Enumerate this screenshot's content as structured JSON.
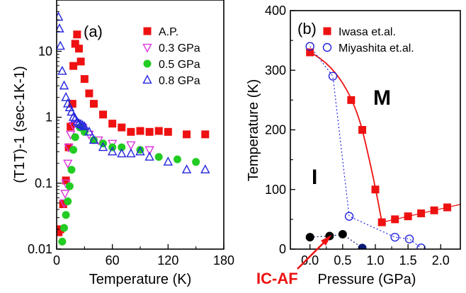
{
  "chart_data": [
    {
      "panel": "(a)",
      "type": "scatter",
      "xlabel": "Temperature (K)",
      "ylabel": "(T1T)-1 (sec-1K-1)",
      "xlim": [
        0,
        180
      ],
      "ylim": [
        0.01,
        60
      ],
      "yscale": "log",
      "xticks": [
        "0",
        "60",
        "120",
        "180"
      ],
      "yticks": [
        "0.01",
        "0.1",
        "1",
        "10"
      ],
      "legend_position": "top-right",
      "series": [
        {
          "name": "A.P.",
          "marker": "square",
          "color": "#ee1111",
          "filled": true,
          "points": [
            [
              2,
              0.018
            ],
            [
              4,
              0.02
            ],
            [
              7,
              0.048
            ],
            [
              10,
              0.11
            ],
            [
              13,
              0.35
            ],
            [
              15,
              0.72
            ],
            [
              17,
              1.6
            ],
            [
              18,
              6
            ],
            [
              20,
              13
            ],
            [
              22,
              18
            ],
            [
              24,
              11
            ],
            [
              26,
              7
            ],
            [
              30,
              3.8
            ],
            [
              35,
              2.3
            ],
            [
              40,
              1.6
            ],
            [
              50,
              1.1
            ],
            [
              60,
              0.8
            ],
            [
              70,
              0.7
            ],
            [
              80,
              0.6
            ],
            [
              90,
              0.62
            ],
            [
              100,
              0.6
            ],
            [
              110,
              0.62
            ],
            [
              120,
              0.6
            ],
            [
              140,
              0.55
            ],
            [
              160,
              0.55
            ]
          ]
        },
        {
          "name": "0.3 GPa",
          "marker": "triangle-down",
          "color": "#dd33dd",
          "filled": false,
          "points": [
            [
              8,
              0.05
            ],
            [
              9,
              0.07
            ],
            [
              10,
              0.1
            ],
            [
              12,
              0.2
            ],
            [
              13,
              0.35
            ],
            [
              15,
              0.55
            ],
            [
              18,
              0.75
            ],
            [
              22,
              0.8
            ],
            [
              28,
              0.7
            ],
            [
              35,
              0.55
            ],
            [
              45,
              0.45
            ],
            [
              60,
              0.4
            ],
            [
              80,
              0.38
            ],
            [
              100,
              0.32
            ]
          ]
        },
        {
          "name": "0.5 GPa",
          "marker": "circle",
          "color": "#22cc22",
          "filled": true,
          "points": [
            [
              3,
              0.009
            ],
            [
              6,
              0.013
            ],
            [
              8,
              0.021
            ],
            [
              10,
              0.033
            ],
            [
              12,
              0.053
            ],
            [
              14,
              0.09
            ],
            [
              16,
              0.16
            ],
            [
              18,
              0.32
            ],
            [
              20,
              0.5
            ],
            [
              25,
              0.7
            ],
            [
              30,
              0.6
            ],
            [
              40,
              0.45
            ],
            [
              50,
              0.4
            ],
            [
              60,
              0.35
            ],
            [
              70,
              0.35
            ],
            [
              90,
              0.32
            ],
            [
              110,
              0.25
            ],
            [
              130,
              0.23
            ],
            [
              150,
              0.21
            ]
          ]
        },
        {
          "name": "0.8 GPa",
          "marker": "triangle-up",
          "color": "#2222dd",
          "filled": false,
          "points": [
            [
              2,
              33
            ],
            [
              3,
              22
            ],
            [
              4,
              12
            ],
            [
              6,
              5
            ],
            [
              8,
              3
            ],
            [
              10,
              2
            ],
            [
              12,
              1.6
            ],
            [
              14,
              1.4
            ],
            [
              16,
              1.2
            ],
            [
              18,
              1.0
            ],
            [
              20,
              0.95
            ],
            [
              22,
              0.85
            ],
            [
              24,
              0.8
            ],
            [
              26,
              0.78
            ],
            [
              28,
              0.75
            ],
            [
              30,
              0.72
            ],
            [
              35,
              0.6
            ],
            [
              40,
              0.45
            ],
            [
              50,
              0.35
            ],
            [
              60,
              0.3
            ],
            [
              70,
              0.28
            ],
            [
              80,
              0.28
            ],
            [
              90,
              0.3
            ],
            [
              100,
              0.25
            ],
            [
              120,
              0.21
            ],
            [
              140,
              0.16
            ],
            [
              160,
              0.16
            ]
          ]
        }
      ]
    },
    {
      "panel": "(b)",
      "type": "scatter",
      "xlabel": "Pressure (GPa)",
      "ylabel": "Temperature (K)",
      "xlim": [
        -0.3,
        2.3
      ],
      "ylim": [
        0,
        400
      ],
      "xticks": [
        "0.0",
        "0.5",
        "1.0",
        "1.5",
        "2.0"
      ],
      "yticks": [
        "0",
        "100",
        "200",
        "300",
        "400"
      ],
      "legend_position": "top-right",
      "region_labels": [
        "M",
        "I"
      ],
      "annotation": "IC-AF",
      "series": [
        {
          "name": "Iwasa et.al.",
          "marker": "square",
          "color": "#ee1111",
          "filled": true,
          "points": [
            [
              0.0,
              330
            ],
            [
              0.63,
              250
            ],
            [
              0.8,
              200
            ],
            [
              1.0,
              100
            ],
            [
              1.1,
              45
            ],
            [
              1.3,
              50
            ],
            [
              1.5,
              55
            ],
            [
              1.7,
              60
            ],
            [
              1.9,
              65
            ],
            [
              2.1,
              70
            ]
          ]
        },
        {
          "name": "Miyashita et.al.",
          "marker": "circle",
          "color": "#2222dd",
          "filled": false,
          "points": [
            [
              0.0,
              340
            ],
            [
              0.35,
              290
            ],
            [
              0.6,
              55
            ],
            [
              1.3,
              20
            ],
            [
              1.52,
              17
            ],
            [
              1.7,
              2
            ]
          ]
        },
        {
          "marker": "circle",
          "color": "#000000",
          "filled": true,
          "points": [
            [
              0.0,
              20
            ],
            [
              0.3,
              22
            ],
            [
              0.5,
              25
            ]
          ]
        },
        {
          "marker": "circle",
          "color": "#0a1a77",
          "filled": true,
          "points": [
            [
              0.8,
              2
            ]
          ]
        }
      ]
    }
  ]
}
